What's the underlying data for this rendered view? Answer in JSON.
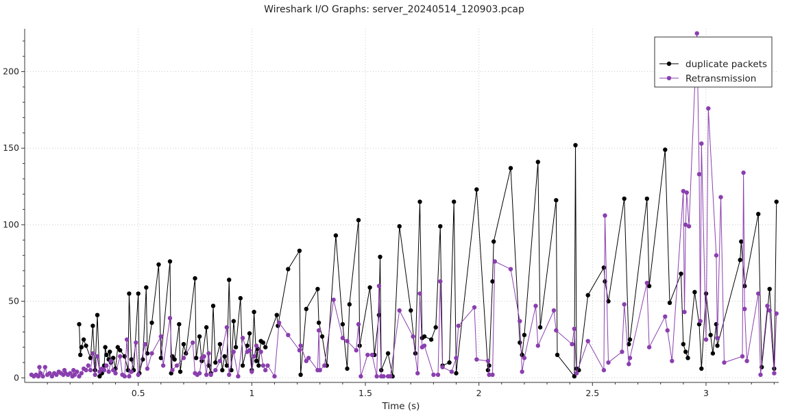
{
  "chart_data": {
    "type": "line",
    "title": "Wireshark I/O Graphs: server_20240514_120903.pcap",
    "xlabel": "Time (s)",
    "ylabel": "",
    "xlim": [
      0.0,
      3.32
    ],
    "ylim": [
      -3,
      228
    ],
    "xticks": [
      0.5,
      1,
      1.5,
      2,
      2.5,
      3
    ],
    "xtick_labels": [
      "0.5",
      "1",
      "1.5",
      "2",
      "2.5",
      "3"
    ],
    "yticks": [
      0,
      50,
      100,
      150,
      200
    ],
    "ytick_labels": [
      "0",
      "50",
      "100",
      "150",
      "200"
    ],
    "grid": true,
    "legend_position": "top-right",
    "series": [
      {
        "name": "duplicate packets",
        "color": "#000000",
        "points": [
          [
            0.24,
            35
          ],
          [
            0.245,
            15
          ],
          [
            0.25,
            20
          ],
          [
            0.26,
            25
          ],
          [
            0.27,
            21
          ],
          [
            0.29,
            13
          ],
          [
            0.3,
            34
          ],
          [
            0.31,
            5
          ],
          [
            0.32,
            41
          ],
          [
            0.33,
            1
          ],
          [
            0.34,
            3
          ],
          [
            0.35,
            8
          ],
          [
            0.355,
            20
          ],
          [
            0.36,
            15
          ],
          [
            0.37,
            12
          ],
          [
            0.375,
            17
          ],
          [
            0.38,
            10
          ],
          [
            0.39,
            13
          ],
          [
            0.4,
            6
          ],
          [
            0.41,
            20
          ],
          [
            0.42,
            18
          ],
          [
            0.44,
            14
          ],
          [
            0.455,
            5
          ],
          [
            0.46,
            55
          ],
          [
            0.47,
            12
          ],
          [
            0.48,
            5
          ],
          [
            0.5,
            55
          ],
          [
            0.505,
            3
          ],
          [
            0.52,
            12
          ],
          [
            0.535,
            59
          ],
          [
            0.54,
            16
          ],
          [
            0.56,
            36
          ],
          [
            0.59,
            74
          ],
          [
            0.6,
            13
          ],
          [
            0.64,
            76
          ],
          [
            0.645,
            3
          ],
          [
            0.65,
            14
          ],
          [
            0.66,
            12
          ],
          [
            0.68,
            35
          ],
          [
            0.685,
            4
          ],
          [
            0.7,
            22
          ],
          [
            0.71,
            16
          ],
          [
            0.75,
            65
          ],
          [
            0.755,
            13
          ],
          [
            0.77,
            27
          ],
          [
            0.78,
            11
          ],
          [
            0.8,
            33
          ],
          [
            0.81,
            8
          ],
          [
            0.82,
            3
          ],
          [
            0.83,
            47
          ],
          [
            0.84,
            10
          ],
          [
            0.86,
            22
          ],
          [
            0.87,
            5
          ],
          [
            0.88,
            14
          ],
          [
            0.89,
            8
          ],
          [
            0.9,
            64
          ],
          [
            0.91,
            5
          ],
          [
            0.92,
            37
          ],
          [
            0.93,
            20
          ],
          [
            0.95,
            52
          ],
          [
            0.96,
            8
          ],
          [
            0.98,
            21
          ],
          [
            0.99,
            29
          ],
          [
            1.0,
            5
          ],
          [
            1.01,
            43
          ],
          [
            1.02,
            11
          ],
          [
            1.025,
            19
          ],
          [
            1.03,
            8
          ],
          [
            1.04,
            24
          ],
          [
            1.05,
            23
          ],
          [
            1.06,
            20
          ],
          [
            1.11,
            41
          ],
          [
            1.115,
            34
          ],
          [
            1.16,
            71
          ],
          [
            1.21,
            83
          ],
          [
            1.215,
            2
          ],
          [
            1.24,
            45
          ],
          [
            1.29,
            58
          ],
          [
            1.295,
            36
          ],
          [
            1.31,
            27
          ],
          [
            1.33,
            8
          ],
          [
            1.37,
            93
          ],
          [
            1.4,
            35
          ],
          [
            1.42,
            6
          ],
          [
            1.43,
            48
          ],
          [
            1.47,
            103
          ],
          [
            1.475,
            21
          ],
          [
            1.52,
            59
          ],
          [
            1.54,
            15
          ],
          [
            1.56,
            41
          ],
          [
            1.565,
            79
          ],
          [
            1.57,
            5
          ],
          [
            1.6,
            16
          ],
          [
            1.62,
            1
          ],
          [
            1.65,
            99
          ],
          [
            1.7,
            44
          ],
          [
            1.72,
            16
          ],
          [
            1.74,
            115
          ],
          [
            1.75,
            26
          ],
          [
            1.76,
            27
          ],
          [
            1.79,
            25
          ],
          [
            1.81,
            33
          ],
          [
            1.83,
            99
          ],
          [
            1.84,
            8
          ],
          [
            1.87,
            10
          ],
          [
            1.89,
            115
          ],
          [
            1.9,
            3
          ],
          [
            1.99,
            123
          ],
          [
            2.04,
            5
          ],
          [
            2.045,
            8
          ],
          [
            2.06,
            63
          ],
          [
            2.065,
            89
          ],
          [
            2.14,
            137
          ],
          [
            2.18,
            23
          ],
          [
            2.19,
            15
          ],
          [
            2.2,
            28
          ],
          [
            2.26,
            141
          ],
          [
            2.27,
            33
          ],
          [
            2.34,
            116
          ],
          [
            2.345,
            15
          ],
          [
            2.42,
            1
          ],
          [
            2.425,
            152
          ],
          [
            2.43,
            6
          ],
          [
            2.44,
            5
          ],
          [
            2.48,
            54
          ],
          [
            2.55,
            72
          ],
          [
            2.555,
            63
          ],
          [
            2.57,
            50
          ],
          [
            2.64,
            117
          ],
          [
            2.66,
            22
          ],
          [
            2.665,
            25
          ],
          [
            2.74,
            117
          ],
          [
            2.75,
            60
          ],
          [
            2.82,
            149
          ],
          [
            2.84,
            49
          ],
          [
            2.89,
            68
          ],
          [
            2.9,
            22
          ],
          [
            2.91,
            17
          ],
          [
            2.92,
            13
          ],
          [
            2.95,
            56
          ],
          [
            2.97,
            35
          ],
          [
            2.98,
            6
          ],
          [
            3.0,
            55
          ],
          [
            3.02,
            28
          ],
          [
            3.03,
            16
          ],
          [
            3.045,
            35
          ],
          [
            3.05,
            21
          ],
          [
            3.15,
            77
          ],
          [
            3.155,
            89
          ],
          [
            3.17,
            60
          ],
          [
            3.23,
            107
          ],
          [
            3.245,
            7
          ],
          [
            3.28,
            58
          ],
          [
            3.3,
            6
          ],
          [
            3.31,
            115
          ]
        ]
      },
      {
        "name": "Retransmission",
        "color": "#8a3fae",
        "points": [
          [
            0.03,
            2
          ],
          [
            0.04,
            1
          ],
          [
            0.05,
            2
          ],
          [
            0.06,
            1
          ],
          [
            0.065,
            7
          ],
          [
            0.07,
            3
          ],
          [
            0.08,
            1
          ],
          [
            0.09,
            7
          ],
          [
            0.1,
            2
          ],
          [
            0.11,
            3
          ],
          [
            0.12,
            1
          ],
          [
            0.13,
            3
          ],
          [
            0.14,
            2
          ],
          [
            0.15,
            4
          ],
          [
            0.16,
            3
          ],
          [
            0.17,
            2
          ],
          [
            0.175,
            5
          ],
          [
            0.18,
            3
          ],
          [
            0.19,
            2
          ],
          [
            0.2,
            3
          ],
          [
            0.21,
            1
          ],
          [
            0.215,
            5
          ],
          [
            0.22,
            2
          ],
          [
            0.23,
            4
          ],
          [
            0.24,
            1
          ],
          [
            0.25,
            3
          ],
          [
            0.26,
            6
          ],
          [
            0.27,
            5
          ],
          [
            0.28,
            8
          ],
          [
            0.29,
            5
          ],
          [
            0.3,
            16
          ],
          [
            0.31,
            2
          ],
          [
            0.32,
            14
          ],
          [
            0.33,
            4
          ],
          [
            0.34,
            6
          ],
          [
            0.35,
            5
          ],
          [
            0.36,
            8
          ],
          [
            0.37,
            4
          ],
          [
            0.38,
            11
          ],
          [
            0.39,
            5
          ],
          [
            0.4,
            3
          ],
          [
            0.42,
            14
          ],
          [
            0.43,
            2
          ],
          [
            0.44,
            1
          ],
          [
            0.45,
            25
          ],
          [
            0.46,
            1
          ],
          [
            0.47,
            4
          ],
          [
            0.49,
            23
          ],
          [
            0.5,
            2
          ],
          [
            0.53,
            22
          ],
          [
            0.54,
            6
          ],
          [
            0.56,
            16
          ],
          [
            0.6,
            27
          ],
          [
            0.61,
            8
          ],
          [
            0.64,
            39
          ],
          [
            0.65,
            5
          ],
          [
            0.67,
            8
          ],
          [
            0.7,
            13
          ],
          [
            0.74,
            23
          ],
          [
            0.75,
            3
          ],
          [
            0.76,
            2
          ],
          [
            0.77,
            3
          ],
          [
            0.78,
            13
          ],
          [
            0.79,
            14
          ],
          [
            0.8,
            2
          ],
          [
            0.81,
            16
          ],
          [
            0.82,
            2
          ],
          [
            0.84,
            5
          ],
          [
            0.86,
            11
          ],
          [
            0.89,
            33
          ],
          [
            0.9,
            2
          ],
          [
            0.92,
            17
          ],
          [
            0.94,
            1
          ],
          [
            0.96,
            26
          ],
          [
            0.98,
            17
          ],
          [
            0.99,
            18
          ],
          [
            1.0,
            4
          ],
          [
            1.01,
            14
          ],
          [
            1.02,
            21
          ],
          [
            1.04,
            17
          ],
          [
            1.05,
            8
          ],
          [
            1.06,
            5
          ],
          [
            1.07,
            8
          ],
          [
            1.1,
            1
          ],
          [
            1.12,
            36
          ],
          [
            1.16,
            28
          ],
          [
            1.21,
            18
          ],
          [
            1.215,
            21
          ],
          [
            1.24,
            11
          ],
          [
            1.25,
            13
          ],
          [
            1.29,
            5
          ],
          [
            1.295,
            31
          ],
          [
            1.3,
            5
          ],
          [
            1.32,
            8
          ],
          [
            1.36,
            51
          ],
          [
            1.4,
            26
          ],
          [
            1.42,
            24
          ],
          [
            1.46,
            18
          ],
          [
            1.47,
            35
          ],
          [
            1.48,
            1
          ],
          [
            1.51,
            15
          ],
          [
            1.53,
            15
          ],
          [
            1.55,
            1
          ],
          [
            1.56,
            60
          ],
          [
            1.57,
            1
          ],
          [
            1.58,
            1
          ],
          [
            1.6,
            1
          ],
          [
            1.61,
            1
          ],
          [
            1.65,
            44
          ],
          [
            1.71,
            27
          ],
          [
            1.73,
            3
          ],
          [
            1.74,
            55
          ],
          [
            1.75,
            20
          ],
          [
            1.76,
            21
          ],
          [
            1.8,
            2
          ],
          [
            1.82,
            2
          ],
          [
            1.83,
            63
          ],
          [
            1.84,
            7
          ],
          [
            1.88,
            4
          ],
          [
            1.9,
            13
          ],
          [
            1.91,
            34
          ],
          [
            1.98,
            46
          ],
          [
            1.99,
            12
          ],
          [
            2.04,
            11
          ],
          [
            2.045,
            2
          ],
          [
            2.06,
            2
          ],
          [
            2.07,
            76
          ],
          [
            2.14,
            71
          ],
          [
            2.18,
            37
          ],
          [
            2.19,
            4
          ],
          [
            2.2,
            13
          ],
          [
            2.25,
            47
          ],
          [
            2.26,
            21
          ],
          [
            2.33,
            44
          ],
          [
            2.34,
            31
          ],
          [
            2.41,
            22
          ],
          [
            2.42,
            32
          ],
          [
            2.43,
            3
          ],
          [
            2.48,
            24
          ],
          [
            2.55,
            5
          ],
          [
            2.555,
            106
          ],
          [
            2.57,
            10
          ],
          [
            2.63,
            17
          ],
          [
            2.64,
            48
          ],
          [
            2.66,
            9
          ],
          [
            2.665,
            13
          ],
          [
            2.74,
            62
          ],
          [
            2.75,
            20
          ],
          [
            2.82,
            40
          ],
          [
            2.83,
            31
          ],
          [
            2.85,
            11
          ],
          [
            2.9,
            122
          ],
          [
            2.905,
            43
          ],
          [
            2.91,
            100
          ],
          [
            2.915,
            121
          ],
          [
            2.925,
            99
          ],
          [
            2.96,
            225
          ],
          [
            2.97,
            133
          ],
          [
            2.975,
            37
          ],
          [
            2.98,
            153
          ],
          [
            3.0,
            25
          ],
          [
            3.01,
            176
          ],
          [
            3.045,
            80
          ],
          [
            3.05,
            26
          ],
          [
            3.065,
            118
          ],
          [
            3.08,
            10
          ],
          [
            3.16,
            14
          ],
          [
            3.165,
            134
          ],
          [
            3.17,
            45
          ],
          [
            3.18,
            11
          ],
          [
            3.23,
            55
          ],
          [
            3.24,
            2
          ],
          [
            3.27,
            47
          ],
          [
            3.28,
            44
          ],
          [
            3.3,
            3
          ],
          [
            3.31,
            42
          ]
        ]
      }
    ]
  }
}
